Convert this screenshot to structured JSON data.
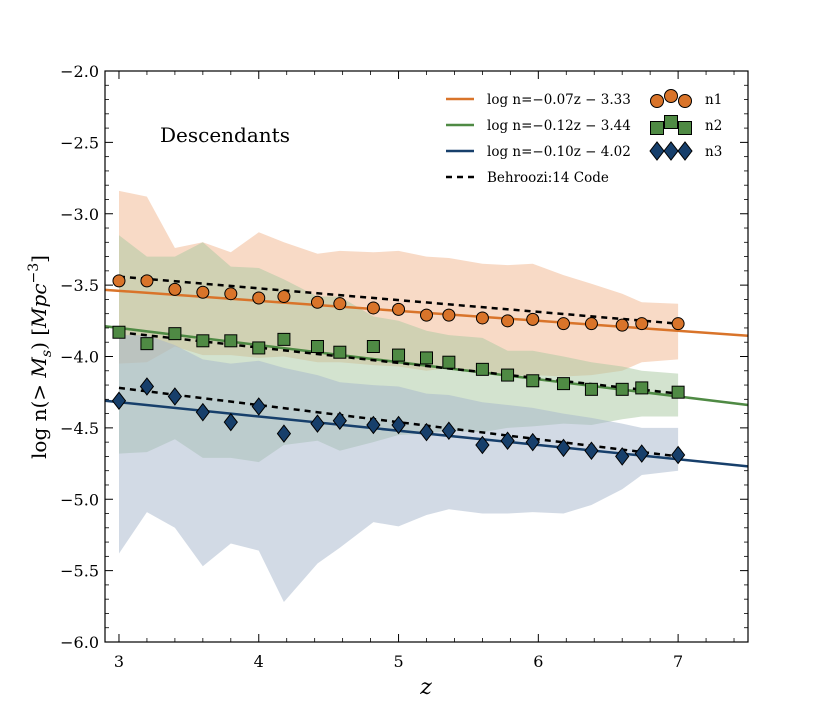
{
  "chart_data": {
    "type": "scatter",
    "title": "",
    "annotation": "Descendants",
    "xlabel": "z",
    "ylabel": "log n(> M_s) [Mpc^-3]",
    "ylabel_parts": {
      "prefix": "log n(> ",
      "m": "M",
      "sub": "s",
      "mid": ") [",
      "mpc": "Mpc",
      "sup": "−3",
      "suffix": "]"
    },
    "xlim": [
      2.9,
      7.5
    ],
    "ylim": [
      -6.0,
      -2.0
    ],
    "xticks": [
      3,
      4,
      5,
      6,
      7
    ],
    "xtick_labels": [
      "3",
      "4",
      "5",
      "6",
      "7"
    ],
    "yticks": [
      -6.0,
      -5.5,
      -5.0,
      -4.5,
      -4.0,
      -3.5,
      -3.0,
      -2.5,
      -2.0
    ],
    "ytick_labels": [
      "−6.0",
      "−5.5",
      "−5.0",
      "−4.5",
      "−4.0",
      "−3.5",
      "−3.0",
      "−2.5",
      "−2.0"
    ],
    "grid": false,
    "legend_position": "top-right",
    "series": [
      {
        "name": "n1",
        "marker": "circle",
        "color": "#d9742a",
        "band_color": "#f2b58e",
        "fit_label": "log n=−0.07z − 3.33",
        "fit": {
          "slope": -0.07,
          "intercept": -3.33
        },
        "x": [
          3.0,
          3.2,
          3.4,
          3.6,
          3.8,
          4.0,
          4.18,
          4.42,
          4.58,
          4.82,
          5.0,
          5.2,
          5.36,
          5.6,
          5.78,
          5.96,
          6.18,
          6.38,
          6.6,
          6.74,
          7.0
        ],
        "values": [
          -3.47,
          -3.47,
          -3.53,
          -3.55,
          -3.56,
          -3.59,
          -3.58,
          -3.62,
          -3.63,
          -3.66,
          -3.67,
          -3.71,
          -3.71,
          -3.73,
          -3.75,
          -3.74,
          -3.77,
          -3.77,
          -3.78,
          -3.77,
          -3.77
        ],
        "band_upper": [
          -2.84,
          -2.88,
          -3.24,
          -3.2,
          -3.27,
          -3.13,
          -3.2,
          -3.28,
          -3.26,
          -3.27,
          -3.26,
          -3.3,
          -3.31,
          -3.35,
          -3.36,
          -3.35,
          -3.43,
          -3.49,
          -3.56,
          -3.62,
          -3.63
        ],
        "band_lower": [
          -4.05,
          -4.04,
          -3.93,
          -3.99,
          -3.99,
          -4.01,
          -4.0,
          -4.04,
          -4.04,
          -4.06,
          -4.07,
          -4.1,
          -4.08,
          -4.12,
          -4.14,
          -4.13,
          -4.14,
          -4.13,
          -4.1,
          -4.04,
          -4.02
        ]
      },
      {
        "name": "n2",
        "marker": "square",
        "color": "#4f8a44",
        "band_color": "#a8c7a0",
        "fit_label": "log n=−0.12z − 3.44",
        "fit": {
          "slope": -0.12,
          "intercept": -3.44
        },
        "x": [
          3.0,
          3.2,
          3.4,
          3.6,
          3.8,
          4.0,
          4.18,
          4.42,
          4.58,
          4.82,
          5.0,
          5.2,
          5.36,
          5.6,
          5.78,
          5.96,
          6.18,
          6.38,
          6.6,
          6.74,
          7.0
        ],
        "values": [
          -3.83,
          -3.91,
          -3.84,
          -3.89,
          -3.89,
          -3.94,
          -3.88,
          -3.93,
          -3.97,
          -3.93,
          -3.99,
          -4.01,
          -4.04,
          -4.09,
          -4.13,
          -4.17,
          -4.19,
          -4.23,
          -4.23,
          -4.22,
          -4.25
        ],
        "band_upper": [
          -3.15,
          -3.3,
          -3.3,
          -3.2,
          -3.37,
          -3.38,
          -3.46,
          -3.58,
          -3.58,
          -3.72,
          -3.75,
          -3.82,
          -3.85,
          -3.87,
          -3.96,
          -3.96,
          -4.0,
          -4.04,
          -4.07,
          -4.1,
          -4.12
        ],
        "band_lower": [
          -4.68,
          -4.67,
          -4.58,
          -4.71,
          -4.71,
          -4.74,
          -4.62,
          -4.59,
          -4.66,
          -4.6,
          -4.55,
          -4.54,
          -4.52,
          -4.53,
          -4.5,
          -4.49,
          -4.47,
          -4.48,
          -4.44,
          -4.42,
          -4.42
        ]
      },
      {
        "name": "n3",
        "marker": "diamond",
        "color": "#173f6b",
        "band_color": "#a5b6cc",
        "fit_label": "log n=−0.10z − 4.02",
        "fit": {
          "slope": -0.1,
          "intercept": -4.02
        },
        "x": [
          3.0,
          3.2,
          3.4,
          3.6,
          3.8,
          4.0,
          4.18,
          4.42,
          4.58,
          4.82,
          5.0,
          5.2,
          5.36,
          5.6,
          5.78,
          5.96,
          6.18,
          6.38,
          6.6,
          6.74,
          7.0
        ],
        "values": [
          -4.31,
          -4.21,
          -4.28,
          -4.39,
          -4.46,
          -4.35,
          -4.54,
          -4.47,
          -4.45,
          -4.48,
          -4.48,
          -4.53,
          -4.52,
          -4.62,
          -4.59,
          -4.6,
          -4.64,
          -4.66,
          -4.7,
          -4.68,
          -4.69
        ],
        "band_upper": [
          -3.85,
          -3.85,
          -3.92,
          -4.02,
          -4.05,
          -4.03,
          -4.08,
          -4.13,
          -4.18,
          -4.2,
          -4.21,
          -4.26,
          -4.27,
          -4.32,
          -4.34,
          -4.36,
          -4.4,
          -4.43,
          -4.47,
          -4.5,
          -4.5
        ],
        "band_lower": [
          -5.38,
          -5.09,
          -5.2,
          -5.47,
          -5.31,
          -5.36,
          -5.72,
          -5.45,
          -5.34,
          -5.16,
          -5.19,
          -5.11,
          -5.07,
          -5.1,
          -5.1,
          -5.09,
          -5.1,
          -5.04,
          -4.93,
          -4.83,
          -4.8
        ]
      }
    ],
    "reference_label": "Behroozi:14 Code",
    "reference_lines": [
      {
        "series": "n1",
        "x": [
          3.0,
          7.0
        ],
        "values": [
          -3.44,
          -3.77
        ]
      },
      {
        "series": "n2",
        "x": [
          3.0,
          7.0
        ],
        "values": [
          -3.83,
          -4.26
        ]
      },
      {
        "series": "n3",
        "x": [
          3.0,
          7.0
        ],
        "values": [
          -4.22,
          -4.7
        ]
      }
    ]
  }
}
